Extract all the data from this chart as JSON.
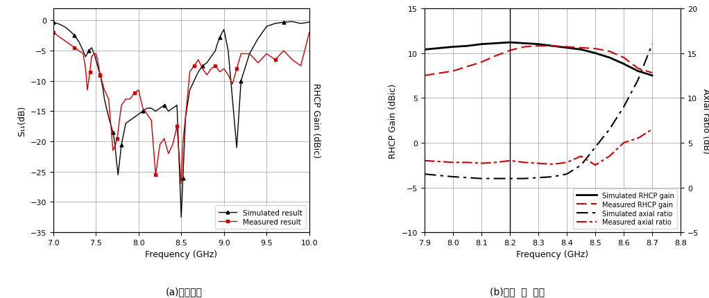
{
  "plot_a": {
    "title": "(a)반사손실",
    "xlabel": "Frequency (GHz)",
    "ylabel": "S₁₁(dB)",
    "ylabel_right": "RHCP Gain (dBic)",
    "xlim": [
      7.0,
      10.0
    ],
    "ylim": [
      -35,
      2
    ],
    "yticks": [
      0,
      -5,
      -10,
      -15,
      -20,
      -25,
      -30,
      -35
    ],
    "xticks": [
      7.0,
      7.5,
      8.0,
      8.5,
      9.0,
      9.5,
      10.0
    ],
    "sim_color": "#000000",
    "meas_color": "#cc0000",
    "sim_freq": [
      7.0,
      7.05,
      7.1,
      7.15,
      7.2,
      7.25,
      7.3,
      7.35,
      7.38,
      7.4,
      7.42,
      7.45,
      7.48,
      7.5,
      7.52,
      7.55,
      7.58,
      7.6,
      7.65,
      7.68,
      7.7,
      7.72,
      7.74,
      7.76,
      7.78,
      7.8,
      7.85,
      7.9,
      7.95,
      8.0,
      8.05,
      8.1,
      8.15,
      8.2,
      8.25,
      8.3,
      8.35,
      8.4,
      8.45,
      8.5,
      8.52,
      8.55,
      8.6,
      8.65,
      8.7,
      8.75,
      8.8,
      8.85,
      8.9,
      8.92,
      8.95,
      9.0,
      9.05,
      9.1,
      9.15,
      9.2,
      9.3,
      9.4,
      9.5,
      9.6,
      9.7,
      9.8,
      9.9,
      10.0
    ],
    "sim_vals": [
      -0.3,
      -0.5,
      -0.8,
      -1.2,
      -1.8,
      -2.5,
      -3.5,
      -5.0,
      -6.0,
      -5.5,
      -5.0,
      -4.5,
      -5.5,
      -6.5,
      -7.5,
      -9.0,
      -11.0,
      -13.0,
      -16.0,
      -17.5,
      -18.5,
      -20.0,
      -23.0,
      -25.5,
      -23.0,
      -20.5,
      -17.0,
      -16.5,
      -16.0,
      -15.5,
      -15.0,
      -14.5,
      -14.5,
      -15.0,
      -14.5,
      -14.0,
      -15.0,
      -14.5,
      -14.0,
      -32.5,
      -26.0,
      -16.0,
      -11.5,
      -10.0,
      -8.5,
      -7.5,
      -7.0,
      -6.0,
      -5.0,
      -4.0,
      -2.8,
      -1.5,
      -5.0,
      -13.0,
      -21.0,
      -10.0,
      -5.5,
      -3.0,
      -1.0,
      -0.5,
      -0.3,
      -0.2,
      -0.5,
      -0.3
    ],
    "meas_freq": [
      7.0,
      7.05,
      7.1,
      7.15,
      7.2,
      7.25,
      7.3,
      7.35,
      7.38,
      7.4,
      7.43,
      7.45,
      7.48,
      7.5,
      7.52,
      7.55,
      7.6,
      7.65,
      7.7,
      7.73,
      7.75,
      7.78,
      7.8,
      7.85,
      7.9,
      7.95,
      8.0,
      8.05,
      8.1,
      8.15,
      8.2,
      8.25,
      8.3,
      8.35,
      8.4,
      8.45,
      8.5,
      8.52,
      8.55,
      8.6,
      8.65,
      8.7,
      8.75,
      8.8,
      8.85,
      8.9,
      8.95,
      9.0,
      9.05,
      9.1,
      9.15,
      9.2,
      9.3,
      9.4,
      9.5,
      9.6,
      9.7,
      9.8,
      9.9,
      10.0
    ],
    "meas_vals": [
      -2.0,
      -2.5,
      -3.0,
      -3.5,
      -4.0,
      -4.5,
      -5.0,
      -5.5,
      -8.0,
      -11.5,
      -8.5,
      -6.0,
      -5.5,
      -5.5,
      -6.5,
      -9.0,
      -11.5,
      -13.0,
      -21.5,
      -20.5,
      -19.5,
      -16.0,
      -14.0,
      -13.0,
      -13.0,
      -12.0,
      -11.5,
      -14.5,
      -15.5,
      -16.5,
      -25.5,
      -20.5,
      -19.5,
      -22.0,
      -20.5,
      -17.5,
      -27.0,
      -20.0,
      -16.0,
      -8.5,
      -7.5,
      -6.5,
      -8.0,
      -9.0,
      -8.0,
      -7.5,
      -8.5,
      -8.0,
      -9.0,
      -10.5,
      -8.0,
      -5.5,
      -5.5,
      -7.0,
      -5.5,
      -6.5,
      -5.0,
      -6.5,
      -7.5,
      -2.0
    ],
    "legend_sim": "Simulated result",
    "legend_meas": "Measured result"
  },
  "plot_b": {
    "title": "(b)이득  및  축비",
    "xlabel": "Frequency (GHz)",
    "ylabel_left": "RHCP Gain (dBic)",
    "ylabel_right": "Axial ratio (dB)",
    "xlim": [
      7.9,
      8.8
    ],
    "ylim_left": [
      -10,
      15
    ],
    "ylim_right": [
      -5,
      20
    ],
    "yticks_left": [
      -10,
      -5,
      0,
      5,
      10,
      15
    ],
    "yticks_right": [
      -5,
      0,
      5,
      10,
      15,
      20
    ],
    "xticks": [
      7.9,
      8.0,
      8.1,
      8.2,
      8.3,
      8.4,
      8.5,
      8.6,
      8.7,
      8.8
    ],
    "sim_gain_freq": [
      7.9,
      8.0,
      8.05,
      8.1,
      8.15,
      8.2,
      8.25,
      8.3,
      8.35,
      8.4,
      8.45,
      8.5,
      8.55,
      8.6,
      8.65,
      8.7
    ],
    "sim_gain_vals": [
      10.4,
      10.7,
      10.8,
      11.0,
      11.1,
      11.2,
      11.1,
      11.0,
      10.8,
      10.6,
      10.4,
      10.0,
      9.5,
      8.8,
      8.0,
      7.5
    ],
    "meas_gain_freq": [
      7.9,
      8.0,
      8.05,
      8.1,
      8.15,
      8.2,
      8.25,
      8.3,
      8.35,
      8.4,
      8.45,
      8.5,
      8.55,
      8.6,
      8.65,
      8.7
    ],
    "meas_gain_vals": [
      7.5,
      8.0,
      8.5,
      9.0,
      9.7,
      10.3,
      10.7,
      10.8,
      10.8,
      10.7,
      10.6,
      10.5,
      10.2,
      9.5,
      8.3,
      7.8
    ],
    "sim_axial_right": [
      1.5,
      1.2,
      1.1,
      1.0,
      1.0,
      1.0,
      1.0,
      1.1,
      1.2,
      1.5,
      2.5,
      4.5,
      6.5,
      9.0,
      12.0,
      16.0
    ],
    "meas_axial_right": [
      3.0,
      2.8,
      2.8,
      2.7,
      2.8,
      3.0,
      2.8,
      2.7,
      2.6,
      2.8,
      3.5,
      2.5,
      3.5,
      5.0,
      5.5,
      6.5
    ],
    "sim_axial_freq": [
      7.9,
      8.0,
      8.05,
      8.1,
      8.15,
      8.2,
      8.25,
      8.3,
      8.35,
      8.4,
      8.45,
      8.5,
      8.55,
      8.6,
      8.65,
      8.7
    ],
    "meas_axial_freq": [
      7.9,
      8.0,
      8.05,
      8.1,
      8.15,
      8.2,
      8.25,
      8.3,
      8.35,
      8.4,
      8.45,
      8.5,
      8.55,
      8.6,
      8.65,
      8.7
    ],
    "sim_color": "#000000",
    "meas_color": "#cc0000",
    "legend_sim_gain": "Simulated RHCP gain",
    "legend_meas_gain": "Measured RHCP gain",
    "legend_sim_axial": "Simulated axial ratio",
    "legend_meas_axial": "Measured axial ratio",
    "vertical_line_x": 8.2
  },
  "bg_color": "#ffffff",
  "grid_color": "#999999"
}
